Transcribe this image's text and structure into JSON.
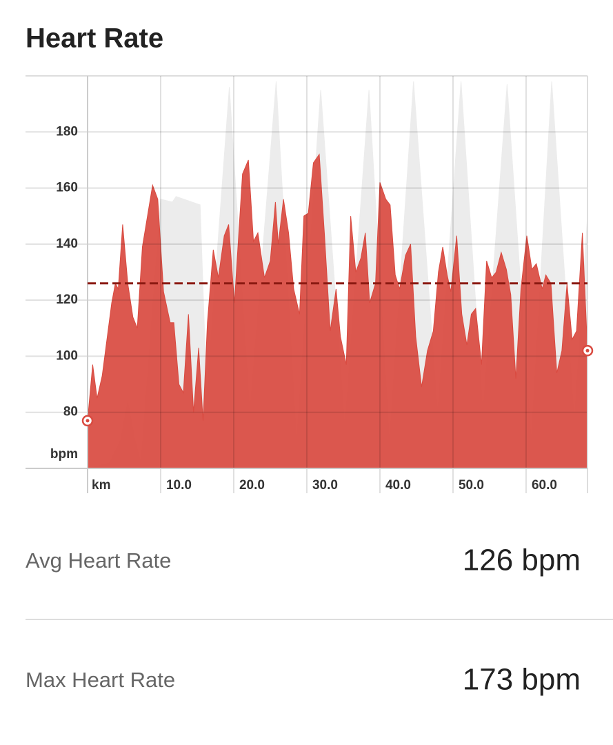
{
  "title": "Heart Rate",
  "chart_data": {
    "type": "area",
    "x_label": "km",
    "y_label": "bpm",
    "xlim": [
      0,
      68.4
    ],
    "ylim": [
      60,
      200
    ],
    "xticks": [
      {
        "value": 10,
        "label": "10.0"
      },
      {
        "value": 20,
        "label": "20.0"
      },
      {
        "value": 30,
        "label": "30.0"
      },
      {
        "value": 40,
        "label": "40.0"
      },
      {
        "value": 50,
        "label": "50.0"
      },
      {
        "value": 60,
        "label": "60.0"
      }
    ],
    "yticks": [
      80,
      100,
      120,
      140,
      160,
      180
    ],
    "grid": true,
    "series": [
      {
        "color": "#ececec",
        "x": [
          0,
          3.0,
          4.5,
          5.5,
          6.5,
          7.3,
          10.0,
          11.6,
          12.1,
          15.4,
          16.3,
          19.4,
          22.2,
          25.8,
          28.6,
          31.9,
          35.2,
          38.5,
          41.3,
          44.6,
          47.9,
          51.1,
          54.1,
          57.4,
          60.7,
          63.5,
          66.6,
          68.4
        ],
        "values": [
          60,
          62,
          70,
          84,
          70,
          62,
          156,
          155,
          157,
          154,
          86,
          196,
          80,
          198,
          70,
          195,
          75,
          195,
          70,
          198,
          80,
          198,
          80,
          197,
          70,
          198,
          77,
          150
        ]
      },
      {
        "color": "#d94a40",
        "x": [
          0,
          0.7,
          1.3,
          2.0,
          3.3,
          3.8,
          4.2,
          4.8,
          5.5,
          6.2,
          6.8,
          7.5,
          8.9,
          9.6,
          10.4,
          11.3,
          11.8,
          12.5,
          13.1,
          13.8,
          14.5,
          15.2,
          15.8,
          16.4,
          17.2,
          17.9,
          18.7,
          19.3,
          20.1,
          21.2,
          22.0,
          22.7,
          23.3,
          24.2,
          25.0,
          25.7,
          26.1,
          26.8,
          27.5,
          28.2,
          29.0,
          29.6,
          30.2,
          30.9,
          31.7,
          32.4,
          33.2,
          34.0,
          34.6,
          35.4,
          36.0,
          36.7,
          37.4,
          38.0,
          38.6,
          39.4,
          40.0,
          40.8,
          41.4,
          42.1,
          42.7,
          43.5,
          44.2,
          44.9,
          45.7,
          46.5,
          47.3,
          48.0,
          48.6,
          49.2,
          49.7,
          50.5,
          51.2,
          51.9,
          52.5,
          53.1,
          53.9,
          54.6,
          55.3,
          55.9,
          56.6,
          57.3,
          57.9,
          58.6,
          59.3,
          60.1,
          60.8,
          61.4,
          62.2,
          62.7,
          63.4,
          64.2,
          64.9,
          65.6,
          66.3,
          66.9,
          67.7,
          68.4
        ],
        "values": [
          77,
          97,
          85,
          93,
          119,
          126,
          124,
          147,
          126,
          114,
          110,
          139,
          161,
          156,
          123,
          112,
          112,
          90,
          87,
          115,
          80,
          103,
          77,
          112,
          138,
          128,
          143,
          147,
          119,
          165,
          170,
          141,
          144,
          128,
          134,
          155,
          140,
          156,
          144,
          124,
          115,
          150,
          151,
          169,
          172,
          144,
          109,
          124,
          107,
          97,
          150,
          130,
          135,
          144,
          119,
          126,
          162,
          156,
          154,
          129,
          124,
          136,
          140,
          107,
          89,
          102,
          109,
          130,
          139,
          129,
          123,
          143,
          115,
          104,
          115,
          117,
          97,
          134,
          128,
          130,
          137,
          131,
          122,
          92,
          124,
          143,
          131,
          133,
          124,
          129,
          126,
          94,
          102,
          126,
          106,
          109,
          144,
          102
        ]
      }
    ],
    "average_color": "#8b1a12"
  },
  "stats": [
    {
      "label": "Avg Heart Rate",
      "value": 126,
      "value_label": "126 bpm"
    },
    {
      "label": "Max Heart Rate",
      "value": 173,
      "value_label": "173 bpm"
    }
  ]
}
